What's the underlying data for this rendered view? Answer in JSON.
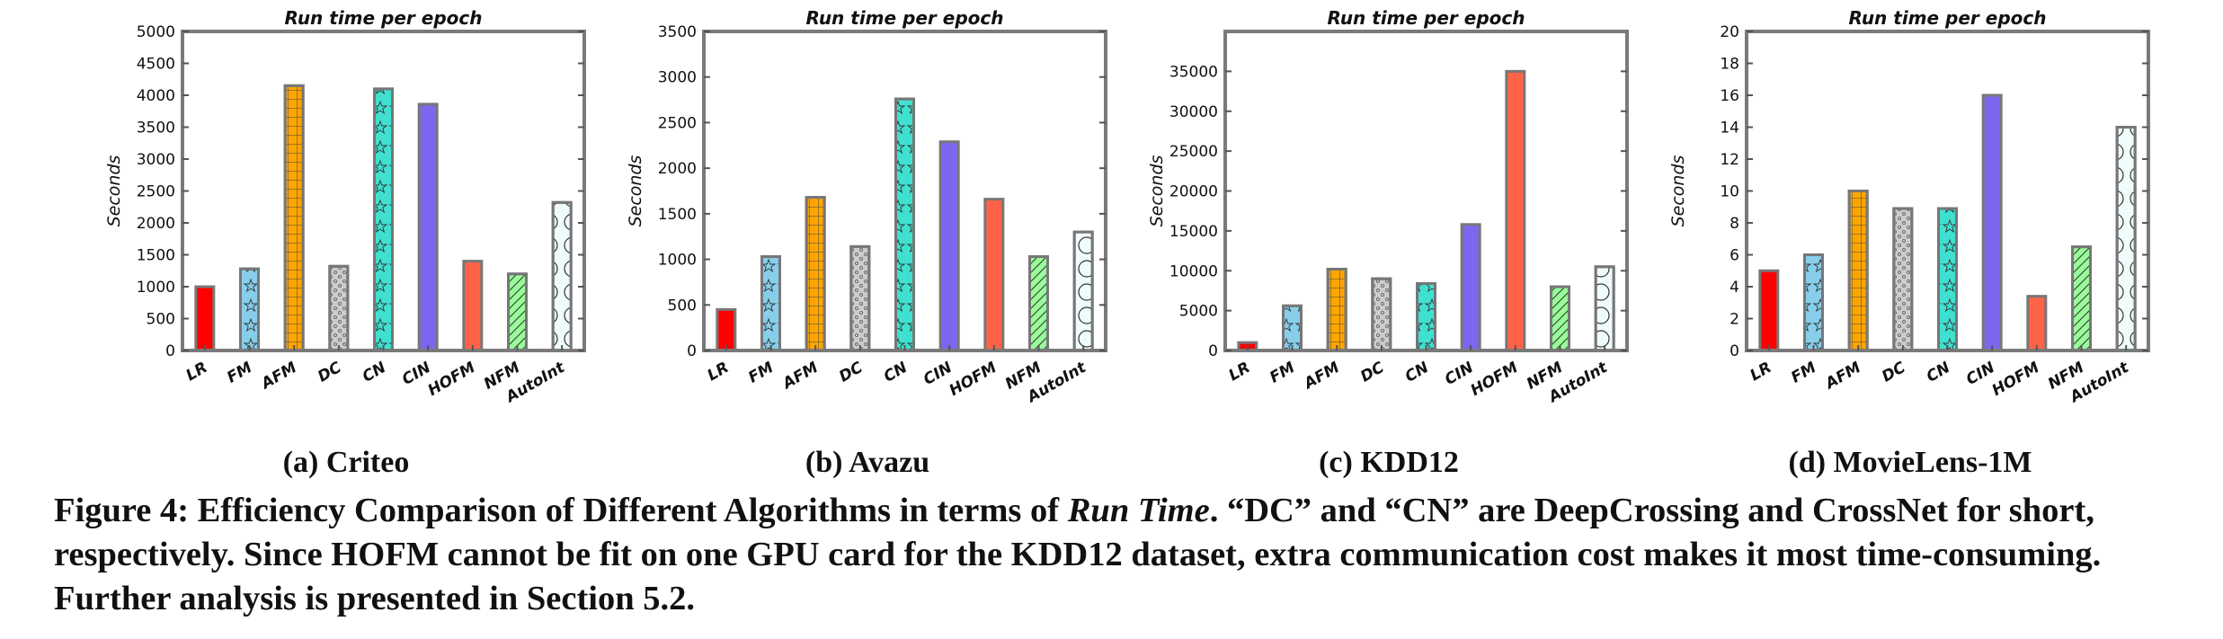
{
  "chart_data": [
    {
      "type": "bar",
      "title": "Run time per epoch",
      "ylabel": "Seconds",
      "xlabel": "",
      "subcaption": "(a) Criteo",
      "categories": [
        "LR",
        "FM",
        "AFM",
        "DC",
        "CN",
        "CIN",
        "HOFM",
        "NFM",
        "AutoInt"
      ],
      "values": [
        1000,
        1280,
        4150,
        1320,
        4100,
        3860,
        1400,
        1200,
        2320
      ],
      "ylim": [
        0,
        5000
      ],
      "yticks": [
        0,
        500,
        1000,
        1500,
        2000,
        2500,
        3000,
        3500,
        4000,
        4500,
        5000
      ],
      "grid": false
    },
    {
      "type": "bar",
      "title": "Run time per epoch",
      "ylabel": "Seconds",
      "xlabel": "",
      "subcaption": "(b) Avazu",
      "categories": [
        "LR",
        "FM",
        "AFM",
        "DC",
        "CN",
        "CIN",
        "HOFM",
        "NFM",
        "AutoInt"
      ],
      "values": [
        450,
        1030,
        1680,
        1140,
        2760,
        2290,
        1660,
        1030,
        1300
      ],
      "ylim": [
        0,
        3500
      ],
      "yticks": [
        0,
        500,
        1000,
        1500,
        2000,
        2500,
        3000,
        3500
      ],
      "grid": false
    },
    {
      "type": "bar",
      "title": "Run time per epoch",
      "ylabel": "Seconds",
      "xlabel": "",
      "subcaption": "(c) KDD12",
      "categories": [
        "LR",
        "FM",
        "AFM",
        "DC",
        "CN",
        "CIN",
        "HOFM",
        "NFM",
        "AutoInt"
      ],
      "values": [
        1000,
        5600,
        10200,
        9000,
        8400,
        15800,
        35000,
        8000,
        10500
      ],
      "ylim": [
        0,
        40000
      ],
      "yticks": [
        0,
        5000,
        10000,
        15000,
        20000,
        25000,
        30000,
        35000
      ],
      "grid": false
    },
    {
      "type": "bar",
      "title": "Run time per epoch",
      "ylabel": "Seconds",
      "xlabel": "",
      "subcaption": "(d) MovieLens-1M",
      "categories": [
        "LR",
        "FM",
        "AFM",
        "DC",
        "CN",
        "CIN",
        "HOFM",
        "NFM",
        "AutoInt"
      ],
      "values": [
        5,
        6,
        10,
        8.9,
        8.9,
        16,
        3.4,
        6.5,
        14
      ],
      "ylim": [
        0,
        20
      ],
      "yticks": [
        0,
        2,
        4,
        6,
        8,
        10,
        12,
        14,
        16,
        18,
        20
      ],
      "grid": false
    }
  ],
  "bar_styles": [
    {
      "name": "LR",
      "color": "#ff0000",
      "pattern": "solid"
    },
    {
      "name": "FM",
      "color": "#87ceeb",
      "pattern": "stars"
    },
    {
      "name": "AFM",
      "color": "#ffa500",
      "pattern": "grid"
    },
    {
      "name": "DC",
      "color": "#cccccc",
      "pattern": "dots"
    },
    {
      "name": "CN",
      "color": "#40e0d0",
      "pattern": "stars"
    },
    {
      "name": "CIN",
      "color": "#7b68ee",
      "pattern": "solid"
    },
    {
      "name": "HOFM",
      "color": "#ff6347",
      "pattern": "solid"
    },
    {
      "name": "NFM",
      "color": "#98fb98",
      "pattern": "hatch"
    },
    {
      "name": "AutoInt",
      "color": "#f0fbfb",
      "pattern": "circles"
    }
  ],
  "caption": {
    "prefix": "Figure 4: Efficiency Comparison of Different Algorithms in terms of ",
    "emphasis": "Run Time",
    "rest": ". “DC” and “CN” are DeepCrossing and CrossNet for short, respectively. Since HOFM cannot be fit on one GPU card for the KDD12 dataset, extra communication cost makes it most time-consuming. Further analysis is presented in Section 5.2."
  }
}
